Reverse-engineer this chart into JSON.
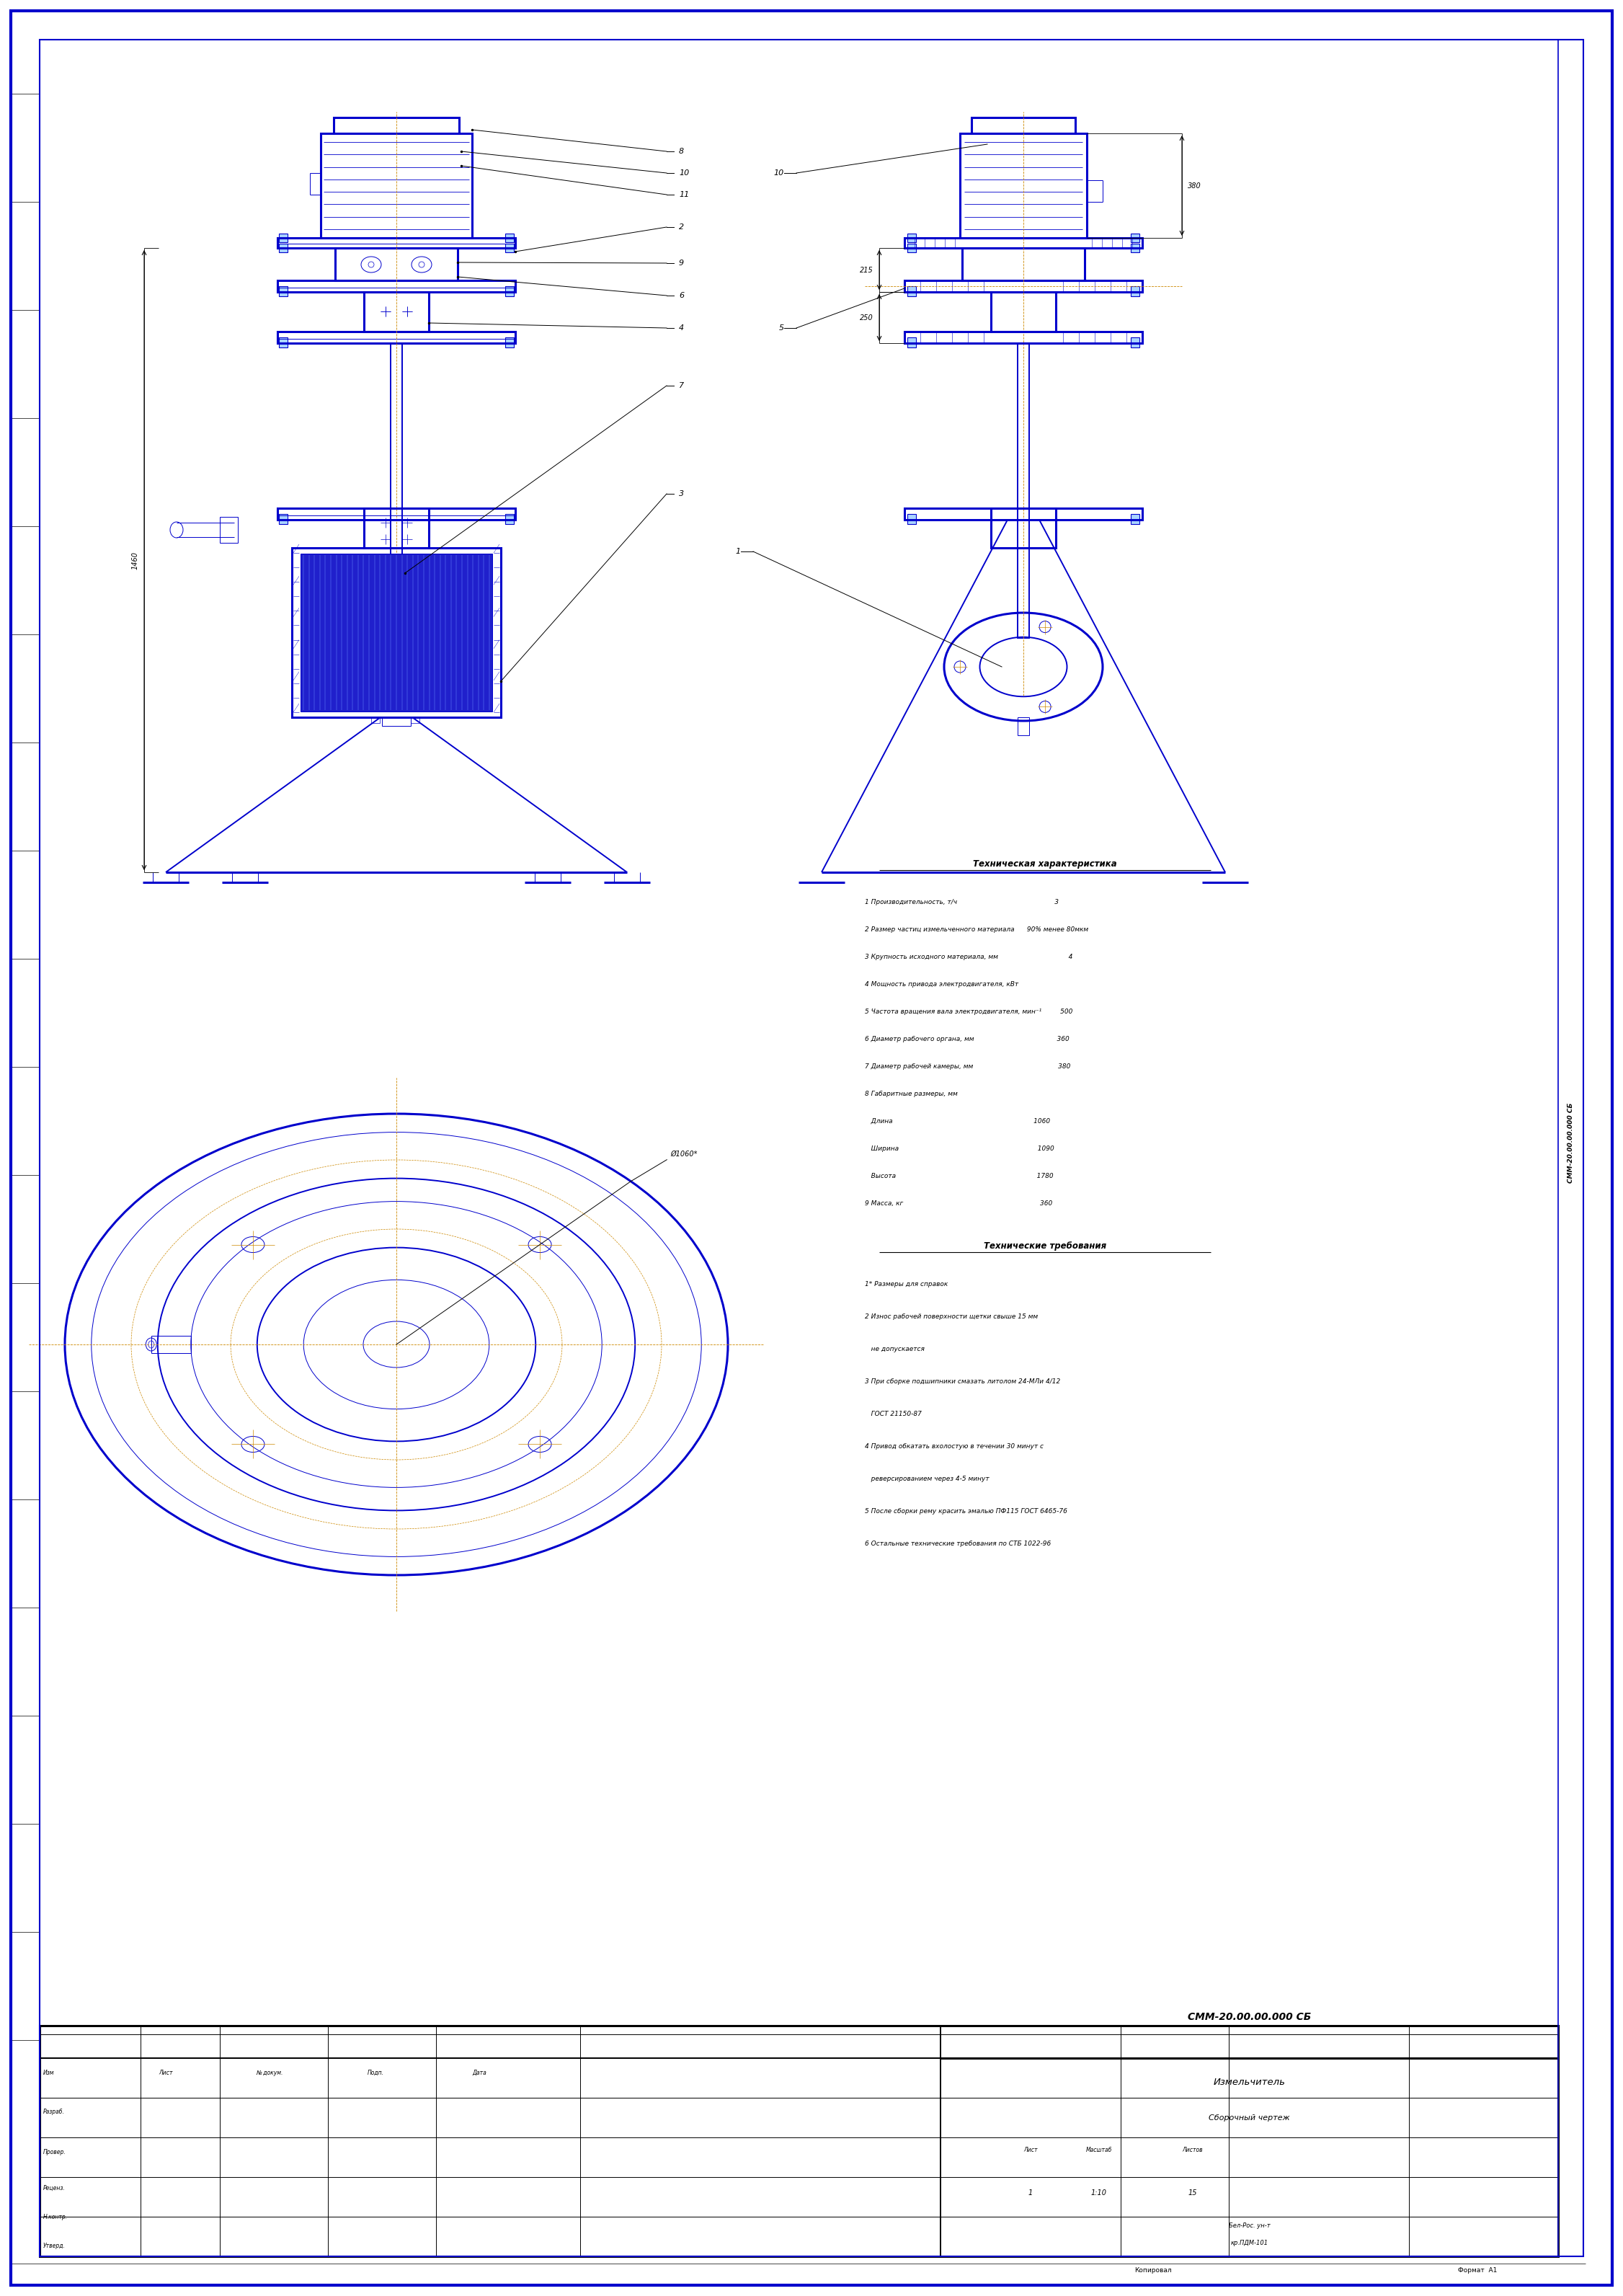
{
  "page_width": 22.52,
  "page_height": 31.85,
  "bg_color": "#ffffff",
  "border_color": "#0000cc",
  "line_color": "#0000cc",
  "dim_color": "#cc8800",
  "text_color": "#000000",
  "document_number": "СММ-20.00.00.000 СБ",
  "drawing_name": "Измельчитель",
  "drawing_type": "Сборочный чертеж",
  "org_line1": "Бел-Рос. ун-т",
  "org_line2": "кр.ПДМ-101",
  "scale": "1:10",
  "sheet_num": "1",
  "sheets_total": "15",
  "tech_chars_title": "Техническая характеристика",
  "tech_chars": [
    "1 Производительность, т/ч                                               3",
    "2 Размер частиц измельченного материала      90% менее 80мкм",
    "3 Крупность исходного материала, мм                                  4",
    "4 Мощность привода электродвигателя, кВт",
    "5 Частота вращения вала электродвигателя, мин⁻¹         500",
    "6 Диаметр рабочего органа, мм                                        360",
    "7 Диаметр рабочей камеры, мм                                         380",
    "8 Габаритные размеры, мм",
    "   Длина                                                                    1060",
    "   Ширина                                                                   1090",
    "   Высота                                                                    1780",
    "9 Масса, кг                                                                  360"
  ],
  "tech_req_title": "Технические требования",
  "tech_req": [
    "1* Размеры для справок",
    "2 Износ рабочей поверхности щетки свыше 15 мм",
    "   не допускается",
    "3 При сборке подшипники смазать литолом 24-МЛи 4/12",
    "   ГОСТ 21150-87",
    "4 Привод обкатать вхолостую в течении 30 минут с",
    "   реверсированием через 4-5 минут",
    "5 После сборки рему красить эмалью ПФ115 ГОСТ 6465-76",
    "6 Остальные технические требования по СТБ 1022-96"
  ],
  "dim_1460": "1460",
  "dim_380": "380",
  "dim_215": "215",
  "dim_250": "250",
  "dia_label": "Ø1060*"
}
